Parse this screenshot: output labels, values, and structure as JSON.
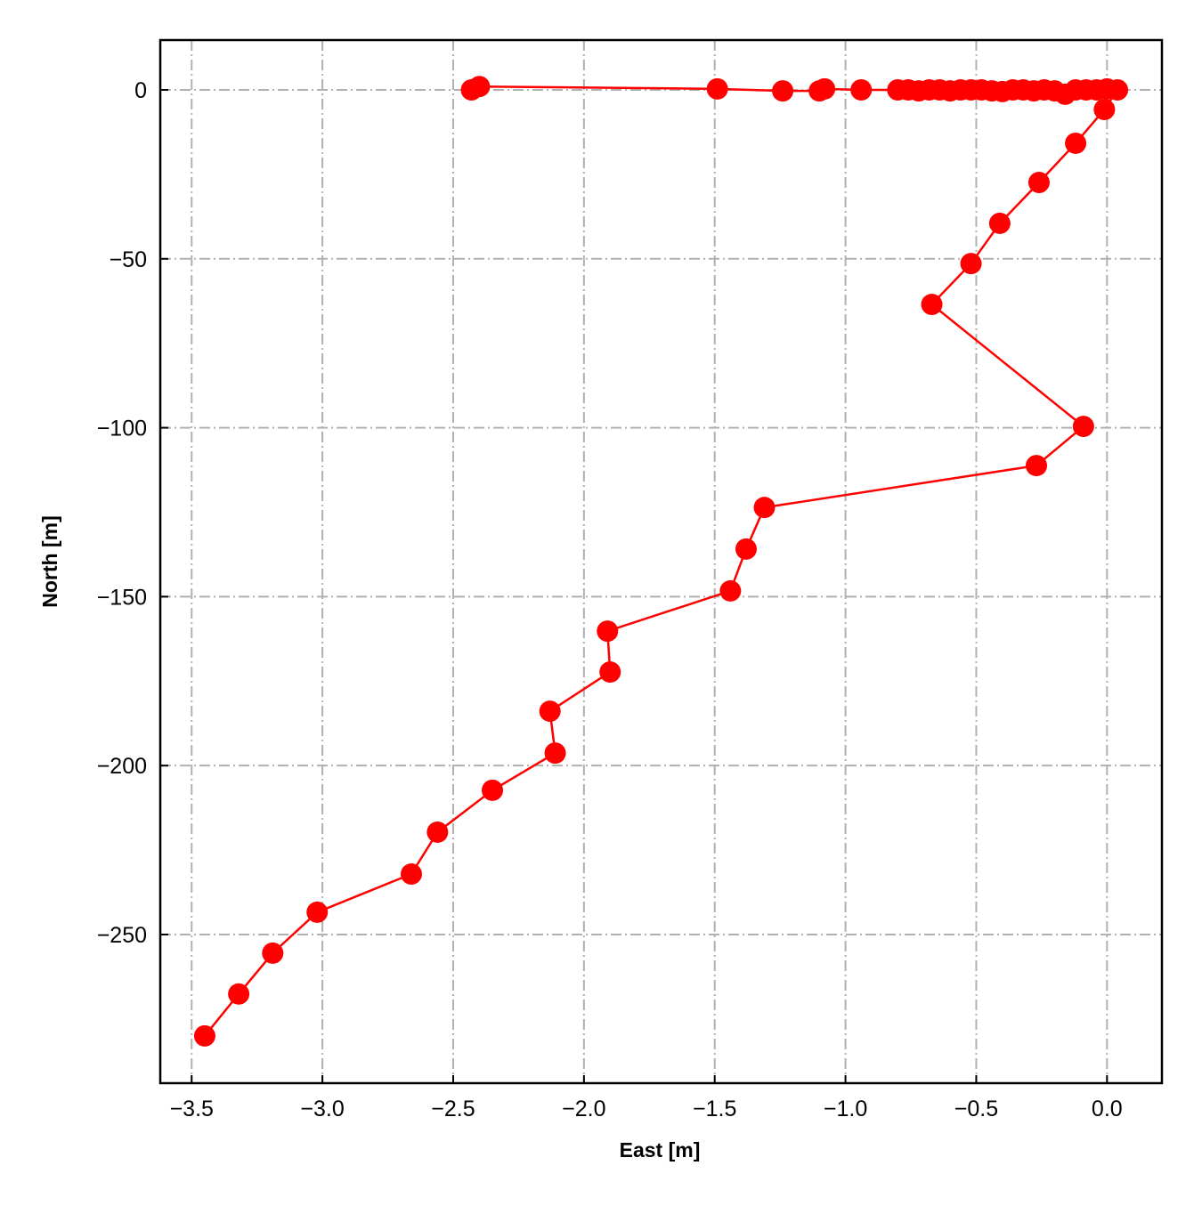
{
  "chart_data": {
    "type": "line",
    "xlabel": "East [m]",
    "ylabel": "North [m]",
    "color": "#ff0000",
    "grid": true,
    "x": [
      -2.43,
      -2.4,
      -1.49,
      -1.24,
      -1.1,
      -1.08,
      -0.94,
      -0.8,
      -0.76,
      -0.72,
      -0.68,
      -0.64,
      -0.6,
      -0.56,
      -0.52,
      -0.48,
      -0.44,
      -0.4,
      -0.36,
      -0.32,
      -0.28,
      -0.24,
      -0.2,
      -0.16,
      -0.12,
      -0.08,
      -0.04,
      0.0,
      0.04,
      -0.01,
      -0.12,
      -0.26,
      -0.41,
      -0.52,
      -0.67,
      -0.09,
      -0.27,
      -1.31,
      -1.38,
      -1.44,
      -1.91,
      -1.9,
      -2.13,
      -2.11,
      -2.35,
      -2.56,
      -2.66,
      -3.02,
      -3.19,
      -3.32,
      -3.45
    ],
    "values": [
      0,
      1,
      0.3,
      -0.3,
      -0.3,
      0.3,
      0,
      0,
      0,
      -0.3,
      0,
      0,
      -0.3,
      0,
      0,
      0,
      -0.3,
      -0.5,
      0,
      0,
      -0.3,
      0,
      -0.3,
      -1.3,
      0,
      0,
      0,
      0.3,
      0,
      -5.8,
      -15.8,
      -27.4,
      -39.5,
      -51.4,
      -63.5,
      -99.6,
      -111.2,
      -123.6,
      -135.9,
      -148.3,
      -160.2,
      -172.3,
      -183.9,
      -196.3,
      -207.3,
      -219.7,
      -232.1,
      -243.4,
      -255.5,
      -267.6,
      -280
    ],
    "xlim": [
      -3.62,
      0.21
    ],
    "xticks": [
      {
        "value": -3.5,
        "label": "−3.5"
      },
      {
        "value": -3.0,
        "label": "−3.0"
      },
      {
        "value": -2.5,
        "label": "−2.5"
      },
      {
        "value": -2.0,
        "label": "−2.0"
      },
      {
        "value": -1.5,
        "label": "−1.5"
      },
      {
        "value": -1.0,
        "label": "−1.0"
      },
      {
        "value": -0.5,
        "label": "−0.5"
      },
      {
        "value": 0,
        "label": "0.0"
      }
    ],
    "ylim": [
      -294,
      14.75
    ],
    "yticks": [
      {
        "value": -250,
        "label": "−250"
      },
      {
        "value": -200,
        "label": "−200"
      },
      {
        "value": -150,
        "label": "−150"
      },
      {
        "value": -100,
        "label": "−100"
      },
      {
        "value": -50,
        "label": "−50"
      },
      0
    ]
  }
}
